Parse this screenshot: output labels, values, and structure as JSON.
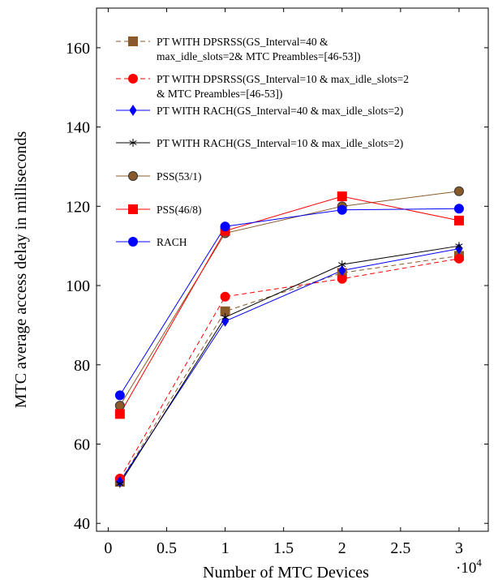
{
  "chart_data": {
    "type": "line",
    "title": "",
    "xlabel": "Number of MTC Devices",
    "ylabel": "MTC average access delay in milliseconds",
    "x_multiplier": "·10",
    "x_multiplier_exp": "4",
    "xlim": [
      -0.1,
      3.25
    ],
    "ylim": [
      38,
      170
    ],
    "xticks": [
      0,
      0.5,
      1,
      1.5,
      2,
      2.5,
      3
    ],
    "xtick_labels": [
      "0",
      "0.5",
      "1",
      "1.5",
      "2",
      "2.5",
      "3"
    ],
    "yticks": [
      40,
      60,
      80,
      100,
      120,
      140,
      160
    ],
    "ytick_labels": [
      "40",
      "60",
      "80",
      "100",
      "120",
      "140",
      "160"
    ],
    "grid": false,
    "legend_position": "top-left",
    "x": [
      0.1,
      1,
      2,
      3
    ],
    "series": [
      {
        "name_lines": [
          "PT WITH DPSRSS(GS_Interval=40 &",
          "max_idle_slots=2& MTC Preambles=[46-53])"
        ],
        "color": "#8b5a2b",
        "marker": "square",
        "dash": "6,4",
        "values": [
          50.5,
          93.5,
          103.2,
          107.5
        ]
      },
      {
        "name_lines": [
          "PT WITH DPSRSS(GS_Interval=10 & max_idle_slots=2",
          "& MTC Preambles=[46-53])"
        ],
        "color": "#ff0000",
        "marker": "circle",
        "dash": "6,4",
        "values": [
          51.3,
          97.2,
          101.7,
          106.8
        ]
      },
      {
        "name_lines": [
          "PT WITH RACH(GS_Interval=40 & max_idle_slots=2)"
        ],
        "color": "#0000ff",
        "marker": "diamond",
        "dash": "",
        "values": [
          50.5,
          91.0,
          103.8,
          109.3
        ]
      },
      {
        "name_lines": [
          "PT WITH RACH(GS_Interval=10 & max_idle_slots=2)"
        ],
        "color": "#000000",
        "marker": "star",
        "dash": "",
        "values": [
          50.0,
          92.0,
          105.3,
          110.0
        ]
      },
      {
        "name_lines": [
          "PSS(53/1)"
        ],
        "color": "#8b5a2b",
        "marker": "circle-dark",
        "dash": "",
        "values": [
          69.7,
          113.2,
          120.0,
          123.8
        ]
      },
      {
        "name_lines": [
          "PSS(46/8)"
        ],
        "color": "#ff0000",
        "marker": "square",
        "dash": "",
        "values": [
          67.6,
          113.8,
          122.5,
          116.4
        ]
      },
      {
        "name_lines": [
          "RACH"
        ],
        "color": "#0000ff",
        "marker": "circle",
        "dash": "",
        "values": [
          72.3,
          114.9,
          119.1,
          119.4
        ]
      }
    ]
  }
}
